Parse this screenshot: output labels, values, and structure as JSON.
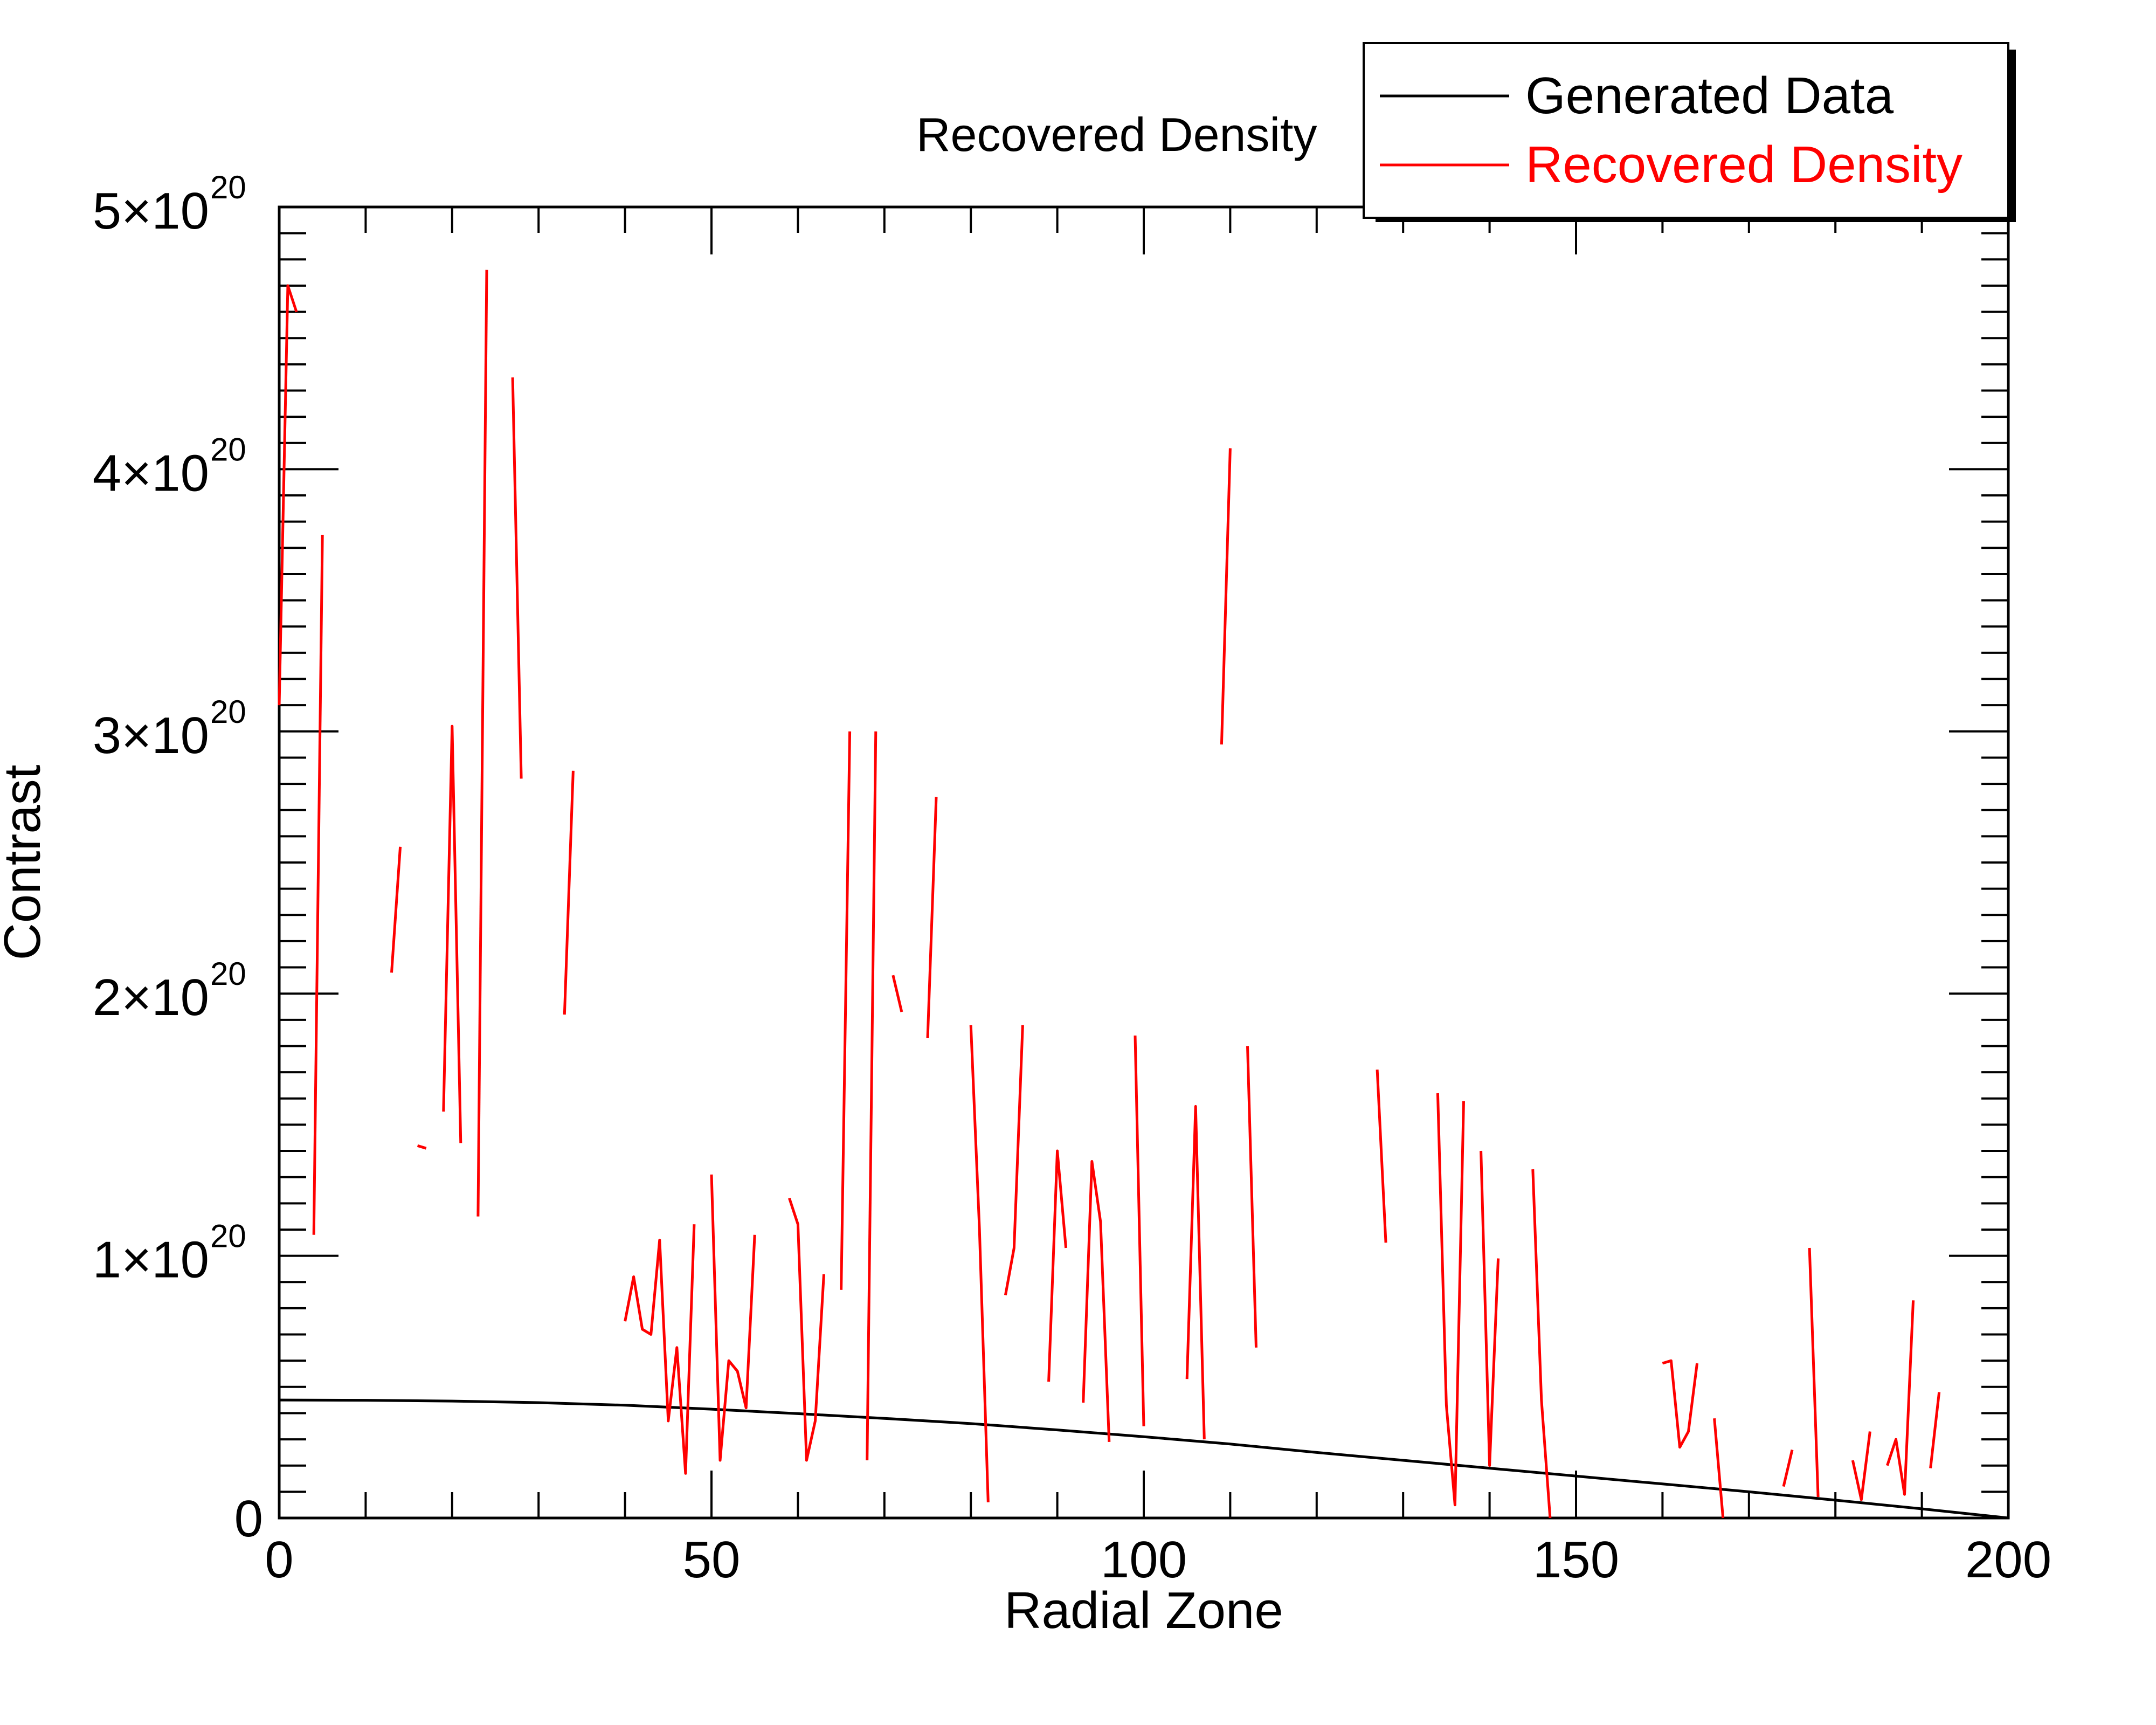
{
  "chart_data": {
    "type": "line",
    "title": "Recovered Density",
    "xlabel": "Radial Zone",
    "ylabel": "Contrast",
    "xlim": [
      0,
      200
    ],
    "ylim": [
      0,
      5e+20
    ],
    "x_ticks": [
      0,
      50,
      100,
      150,
      200
    ],
    "x_tick_labels": [
      "0",
      "50",
      "100",
      "150",
      "200"
    ],
    "y_ticks": [
      0,
      1e+20,
      2e+20,
      3e+20,
      4e+20,
      5e+20
    ],
    "y_tick_labels": [
      {
        "mant": "0",
        "exp": ""
      },
      {
        "mant": "1×10",
        "exp": "20"
      },
      {
        "mant": "2×10",
        "exp": "20"
      },
      {
        "mant": "3×10",
        "exp": "20"
      },
      {
        "mant": "4×10",
        "exp": "20"
      },
      {
        "mant": "5×10",
        "exp": "20"
      }
    ],
    "grid": false,
    "legend_position": "top-right",
    "series": [
      {
        "name": "Generated Data",
        "color": "#000000",
        "x": [
          0,
          10,
          20,
          30,
          40,
          50,
          60,
          70,
          80,
          90,
          100,
          110,
          120,
          130,
          140,
          150,
          160,
          170,
          180,
          190,
          200
        ],
        "y": [
          4.5e+19,
          4.49e+19,
          4.46e+19,
          4.4e+19,
          4.3e+19,
          4.15e+19,
          3.98e+19,
          3.8e+19,
          3.6e+19,
          3.36e+19,
          3.1e+19,
          2.82e+19,
          2.5e+19,
          2.2e+19,
          1.9e+19,
          1.6e+19,
          1.3e+19,
          1e+19,
          6.8e+18,
          3.5e+18,
          0
        ]
      },
      {
        "name": "Recovered Density",
        "color": "#ff0000",
        "unit_scale": 1e+20,
        "segments": [
          [
            [
              0,
              3.1
            ],
            [
              1,
              4.7
            ],
            [
              2,
              4.6
            ]
          ],
          [
            [
              4,
              1.08
            ],
            [
              5,
              3.75
            ]
          ],
          [
            [
              13,
              2.08
            ],
            [
              14,
              2.56
            ]
          ],
          [
            [
              16,
              1.42
            ],
            [
              17,
              1.41
            ]
          ],
          [
            [
              19,
              1.55
            ],
            [
              20,
              3.02
            ],
            [
              21,
              1.43
            ]
          ],
          [
            [
              23,
              1.15
            ],
            [
              24,
              4.76
            ]
          ],
          [
            [
              27,
              4.35
            ],
            [
              28,
              2.82
            ]
          ],
          [
            [
              33,
              1.92
            ],
            [
              34,
              2.85
            ]
          ],
          [
            [
              40,
              0.75
            ],
            [
              41,
              0.92
            ],
            [
              42,
              0.72
            ],
            [
              43,
              0.7
            ],
            [
              44,
              1.06
            ],
            [
              45,
              0.37
            ],
            [
              46,
              0.65
            ],
            [
              47,
              0.17
            ],
            [
              48,
              1.12
            ]
          ],
          [
            [
              50,
              1.31
            ],
            [
              51,
              0.22
            ],
            [
              52,
              0.6
            ],
            [
              53,
              0.56
            ],
            [
              54,
              0.42
            ],
            [
              55,
              1.08
            ]
          ],
          [
            [
              59,
              1.22
            ],
            [
              60,
              1.12
            ],
            [
              61,
              0.22
            ],
            [
              62,
              0.37
            ],
            [
              63,
              0.93
            ]
          ],
          [
            [
              65,
              0.87
            ],
            [
              66,
              3.0
            ]
          ],
          [
            [
              68,
              0.22
            ],
            [
              69,
              3.0
            ]
          ],
          [
            [
              71,
              2.07
            ],
            [
              72,
              1.93
            ]
          ],
          [
            [
              75,
              1.83
            ],
            [
              76,
              2.75
            ]
          ],
          [
            [
              80,
              1.88
            ],
            [
              81,
              1.1
            ],
            [
              82,
              0.06
            ]
          ],
          [
            [
              84,
              0.85
            ],
            [
              85,
              1.03
            ],
            [
              86,
              1.88
            ]
          ],
          [
            [
              89,
              0.52
            ],
            [
              90,
              1.4
            ],
            [
              91,
              1.03
            ]
          ],
          [
            [
              93,
              0.44
            ],
            [
              94,
              1.36
            ],
            [
              95,
              1.13
            ],
            [
              96,
              0.29
            ]
          ],
          [
            [
              99,
              1.84
            ],
            [
              100,
              0.35
            ]
          ],
          [
            [
              105,
              0.53
            ],
            [
              106,
              1.57
            ],
            [
              107,
              0.3
            ]
          ],
          [
            [
              109,
              2.95
            ],
            [
              110,
              4.08
            ]
          ],
          [
            [
              112,
              1.8
            ],
            [
              113,
              0.65
            ]
          ],
          [
            [
              127,
              1.71
            ],
            [
              128,
              1.05
            ]
          ],
          [
            [
              134,
              1.62
            ],
            [
              135,
              0.43
            ],
            [
              136,
              0.05
            ],
            [
              137,
              1.59
            ]
          ],
          [
            [
              139,
              1.4
            ],
            [
              140,
              0.2
            ],
            [
              141,
              0.99
            ]
          ],
          [
            [
              145,
              1.33
            ],
            [
              146,
              0.45
            ],
            [
              147,
              0.0
            ]
          ],
          [
            [
              160,
              0.59
            ],
            [
              161,
              0.6
            ],
            [
              162,
              0.27
            ],
            [
              163,
              0.33
            ],
            [
              164,
              0.59
            ]
          ],
          [
            [
              166,
              0.38
            ],
            [
              167,
              0.0
            ]
          ],
          [
            [
              174,
              0.12
            ],
            [
              175,
              0.26
            ]
          ],
          [
            [
              177,
              1.03
            ],
            [
              178,
              0.08
            ]
          ],
          [
            [
              182,
              0.22
            ],
            [
              183,
              0.07
            ],
            [
              184,
              0.33
            ]
          ],
          [
            [
              186,
              0.2
            ],
            [
              187,
              0.3
            ],
            [
              188,
              0.09
            ],
            [
              189,
              0.83
            ]
          ],
          [
            [
              191,
              0.19
            ],
            [
              192,
              0.48
            ]
          ]
        ]
      }
    ]
  }
}
